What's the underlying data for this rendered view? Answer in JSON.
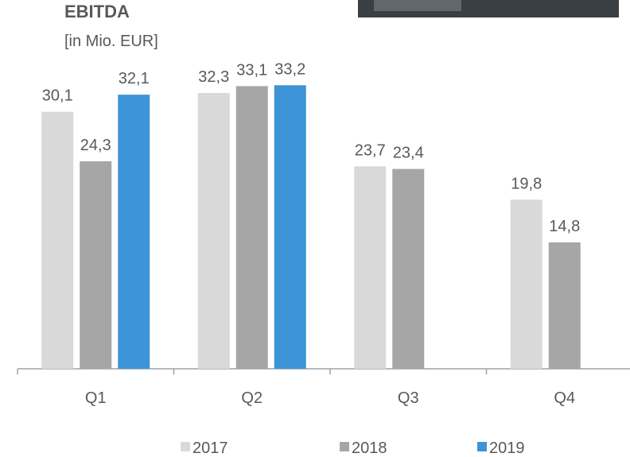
{
  "chart_data": {
    "type": "bar",
    "title": "EBITDA",
    "subtitle": "[in Mio. EUR]",
    "categories": [
      "Q1",
      "Q2",
      "Q3",
      "Q4"
    ],
    "series": [
      {
        "name": "2017",
        "color": "#d9d9d9",
        "values": [
          30.1,
          32.3,
          23.7,
          19.8
        ],
        "value_labels": [
          "30,1",
          "32,3",
          "23,7",
          "19,8"
        ]
      },
      {
        "name": "2018",
        "color": "#a6a6a6",
        "values": [
          24.3,
          33.1,
          23.4,
          14.8
        ],
        "value_labels": [
          "24,3",
          "33,1",
          "23,4",
          "14,8"
        ]
      },
      {
        "name": "2019",
        "color": "#3d94d6",
        "values": [
          32.1,
          33.2,
          null,
          null
        ],
        "value_labels": [
          "32,1",
          "33,2",
          null,
          null
        ]
      }
    ],
    "ylim": [
      0,
      43
    ],
    "legend": "bottom"
  }
}
